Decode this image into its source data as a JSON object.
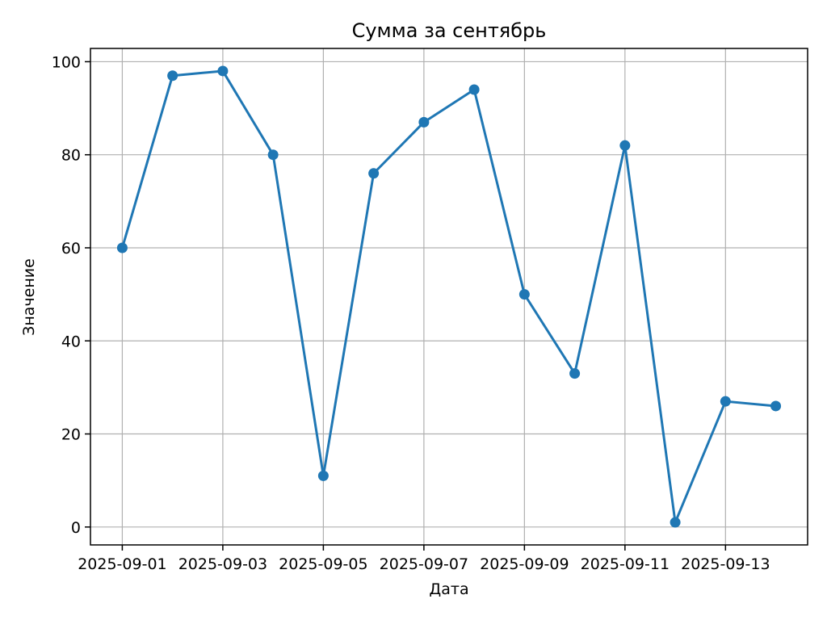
{
  "chart_data": {
    "type": "line",
    "title": "Сумма за сентябрь",
    "xlabel": "Дата",
    "ylabel": "Значение",
    "x": [
      "2025-09-01",
      "2025-09-02",
      "2025-09-03",
      "2025-09-04",
      "2025-09-05",
      "2025-09-06",
      "2025-09-07",
      "2025-09-08",
      "2025-09-09",
      "2025-09-10",
      "2025-09-11",
      "2025-09-12",
      "2025-09-13",
      "2025-09-14"
    ],
    "series": [
      {
        "values": [
          60,
          97,
          98,
          80,
          11,
          76,
          87,
          94,
          50,
          33,
          82,
          1,
          27,
          26
        ],
        "color": "#1f77b4",
        "marker": "circle"
      }
    ],
    "x_ticks": [
      "2025-09-01",
      "2025-09-03",
      "2025-09-05",
      "2025-09-07",
      "2025-09-09",
      "2025-09-11",
      "2025-09-13"
    ],
    "y_ticks": [
      0,
      20,
      40,
      60,
      80,
      100
    ],
    "xlim": [
      "2025-08-31T08:48",
      "2025-09-14T15:12"
    ],
    "ylim": [
      -3.85,
      102.85
    ],
    "grid": true
  }
}
